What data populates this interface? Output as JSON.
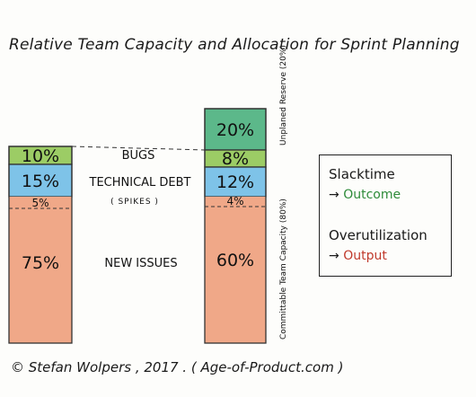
{
  "title": "Relative Team Capacity and Allocation for Sprint Planning",
  "left_bar": {
    "segments": [
      {
        "label": "10%",
        "value": 10,
        "color": "#9ccc65"
      },
      {
        "label": "15%",
        "value": 15,
        "color": "#7ec3e8"
      },
      {
        "label": "5%",
        "value": 5,
        "color": "#f0a888"
      },
      {
        "label": "75%",
        "value": 75,
        "color": "#f0a888"
      }
    ]
  },
  "right_bar": {
    "segments": [
      {
        "label": "20%",
        "value": 20,
        "color": "#5cb88a"
      },
      {
        "label": "8%",
        "value": 8,
        "color": "#9ccc65"
      },
      {
        "label": "12%",
        "value": 12,
        "color": "#7ec3e8"
      },
      {
        "label": "4%",
        "value": 4,
        "color": "#f0a888"
      },
      {
        "label": "60%",
        "value": 60,
        "color": "#f0a888"
      }
    ]
  },
  "categories": {
    "bugs": "BUGS",
    "technical_debt": "TECHNICAL DEBT",
    "spikes": "( SPIKES )",
    "new_issues": "NEW ISSUES"
  },
  "side_labels": {
    "reserve": "Unplaned Reserve (20%)",
    "committable": "Committable Team Capacity (80%)"
  },
  "legend": {
    "slacktime": "Slacktime",
    "outcome_arrow": "→",
    "outcome": "Outcome",
    "overutilization": "Overutilization",
    "output_arrow": "→",
    "output": "Output",
    "outcome_color": "#2e8b3a",
    "output_color": "#c0392b"
  },
  "footer": "© Stefan Wolpers , 2017 . ( Age-of-Product.com )"
}
